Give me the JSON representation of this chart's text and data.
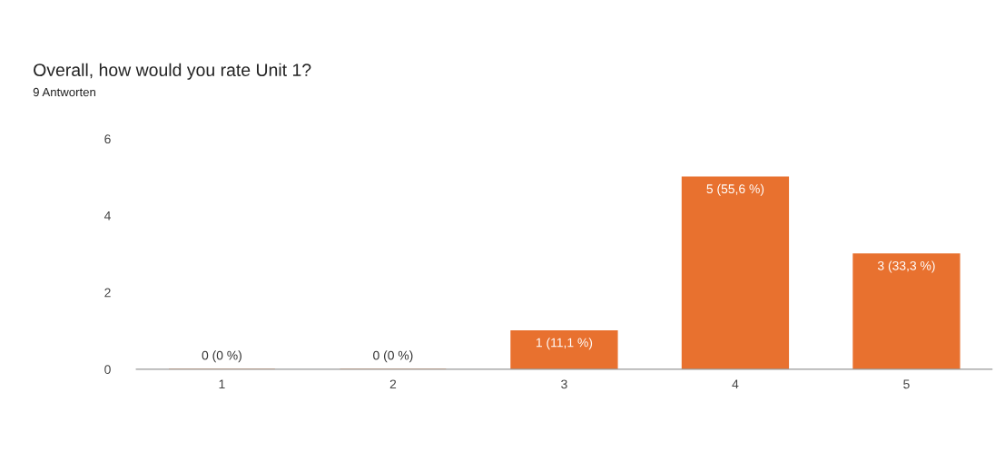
{
  "chart_data": {
    "type": "bar",
    "title": "Overall, how would you rate Unit 1?",
    "subtitle": "9 Antworten",
    "categories": [
      "1",
      "2",
      "3",
      "4",
      "5"
    ],
    "values": [
      0,
      0,
      1,
      5,
      3
    ],
    "value_labels": [
      "0 (0 %)",
      "0 (0 %)",
      "1 (11,1 %)",
      "5 (55,6 %)",
      "3 (33,3 %)"
    ],
    "color": "#e8712f",
    "ylim": [
      0,
      6
    ],
    "yticks": [
      0,
      2,
      4,
      6
    ],
    "grid": false,
    "legend": false
  }
}
